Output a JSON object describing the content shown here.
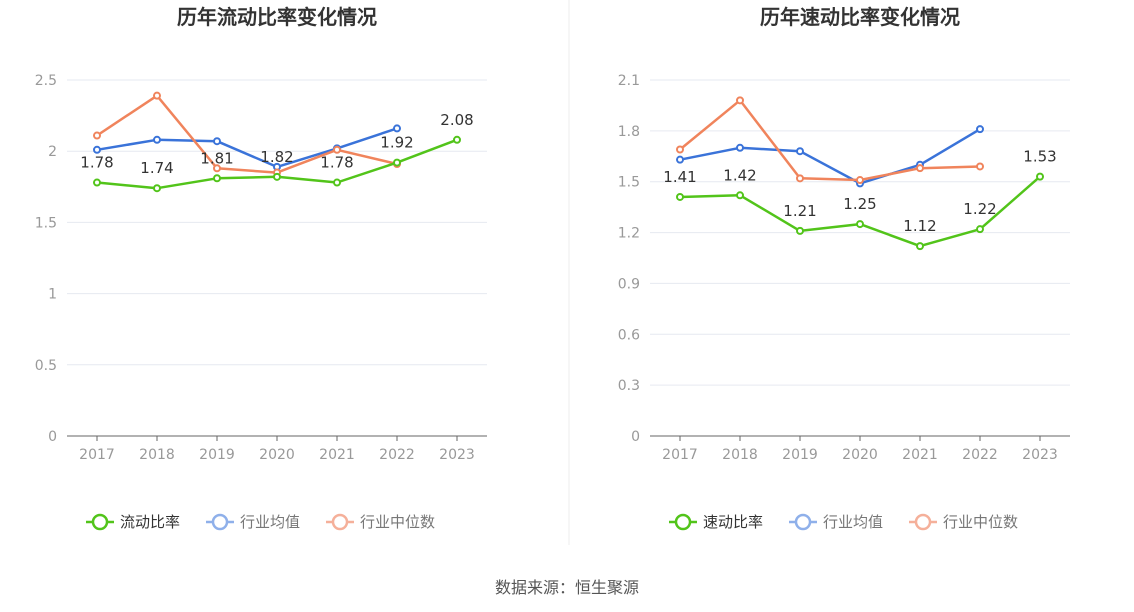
{
  "colors": {
    "main": "#52c41a",
    "industry_avg": "#3a73d9",
    "industry_median": "#f0845c",
    "legend_avg": "#8fb0ea",
    "legend_median": "#f5b09a",
    "axis_text": "#999999",
    "grid": "#e6e9f0",
    "axis_line": "#666666",
    "title": "#333333",
    "label": "#333333"
  },
  "source": "数据来源：恒生聚源",
  "chart_data": [
    {
      "type": "line",
      "title": "历年流动比率变化情况",
      "categories": [
        "2017",
        "2018",
        "2019",
        "2020",
        "2021",
        "2022",
        "2023"
      ],
      "ylim": [
        0,
        2.5
      ],
      "yticks": [
        "0",
        "0.5",
        "1",
        "1.5",
        "2",
        "2.5"
      ],
      "legend_position": "bottom",
      "grid": true,
      "series": [
        {
          "name": "流动比率",
          "values": [
            1.78,
            1.74,
            1.81,
            1.82,
            1.78,
            1.92,
            2.08
          ],
          "labels": [
            "1.78",
            "1.74",
            "1.81",
            "1.82",
            "1.78",
            "1.92",
            "2.08"
          ]
        },
        {
          "name": "行业均值",
          "values": [
            2.01,
            2.08,
            2.07,
            1.89,
            2.02,
            2.16,
            null
          ]
        },
        {
          "name": "行业中位数",
          "values": [
            2.11,
            2.39,
            1.88,
            1.85,
            2.01,
            1.91,
            null
          ]
        }
      ]
    },
    {
      "type": "line",
      "title": "历年速动比率变化情况",
      "categories": [
        "2017",
        "2018",
        "2019",
        "2020",
        "2021",
        "2022",
        "2023"
      ],
      "ylim": [
        0,
        2.1
      ],
      "yticks": [
        "0",
        "0.3",
        "0.6",
        "0.9",
        "1.2",
        "1.5",
        "1.8",
        "2.1"
      ],
      "legend_position": "bottom",
      "grid": true,
      "series": [
        {
          "name": "速动比率",
          "values": [
            1.41,
            1.42,
            1.21,
            1.25,
            1.12,
            1.22,
            1.53
          ],
          "labels": [
            "1.41",
            "1.42",
            "1.21",
            "1.25",
            "1.12",
            "1.22",
            "1.53"
          ]
        },
        {
          "name": "行业均值",
          "values": [
            1.63,
            1.7,
            1.68,
            1.49,
            1.6,
            1.81,
            null
          ]
        },
        {
          "name": "行业中位数",
          "values": [
            1.69,
            1.98,
            1.52,
            1.51,
            1.58,
            1.59,
            null
          ]
        }
      ]
    }
  ]
}
